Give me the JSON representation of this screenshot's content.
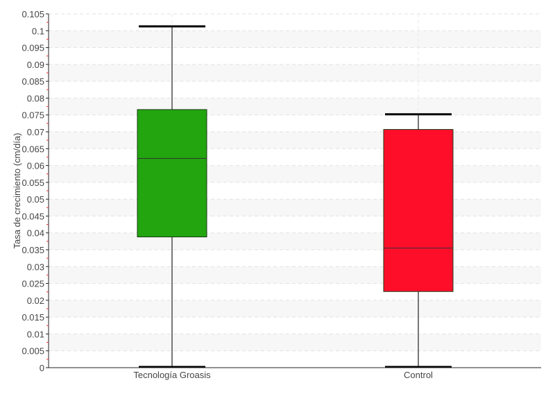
{
  "chart_data": {
    "type": "box",
    "title": "",
    "xlabel": "",
    "ylabel": "Tasa de crecimiento (cm/día)",
    "ylim": [
      0,
      0.105
    ],
    "ytick_step": 0.005,
    "yticks": [
      "0",
      "0.005",
      "0.01",
      "0.015",
      "0.02",
      "0.025",
      "0.03",
      "0.035",
      "0.04",
      "0.045",
      "0.05",
      "0.055",
      "0.06",
      "0.065",
      "0.07",
      "0.075",
      "0.08",
      "0.085",
      "0.09",
      "0.095",
      "0.1",
      "0.105"
    ],
    "grid": true,
    "categories": [
      "Tecnología Groasis",
      "Control"
    ],
    "boxes": [
      {
        "category": "Tecnología Groasis",
        "min": 0.0,
        "q1": 0.0388,
        "median": 0.0621,
        "q3": 0.0766,
        "max": 0.1013,
        "color": "#22a50f"
      },
      {
        "category": "Control",
        "min": 0.0,
        "q1": 0.0226,
        "median": 0.0355,
        "q3": 0.0707,
        "max": 0.0752,
        "color": "#ff0e2a"
      }
    ]
  }
}
